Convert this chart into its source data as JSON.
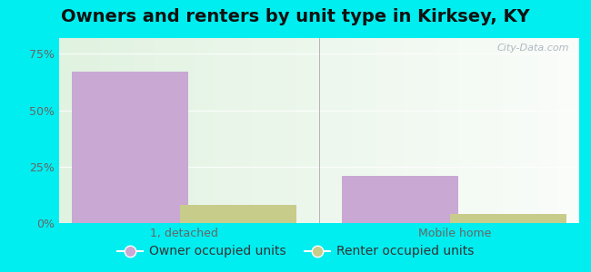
{
  "title": "Owners and renters by unit type in Kirksey, KY",
  "categories": [
    "1, detached",
    "Mobile home"
  ],
  "owner_values": [
    67,
    21
  ],
  "renter_values": [
    8,
    4
  ],
  "owner_color": "#c9a8d4",
  "renter_color": "#c8cc8a",
  "yticks": [
    0,
    25,
    50,
    75
  ],
  "ytick_labels": [
    "0%",
    "25%",
    "50%",
    "75%"
  ],
  "ylim": [
    0,
    82
  ],
  "bar_width": 0.28,
  "outer_bg": "#00eef0",
  "title_fontsize": 14,
  "legend_fontsize": 10,
  "tick_fontsize": 9,
  "watermark_text": "City-Data.com",
  "grid_color": "#e0e8e0",
  "bg_left": "#d8f0d0",
  "bg_right": "#e8f8f4"
}
